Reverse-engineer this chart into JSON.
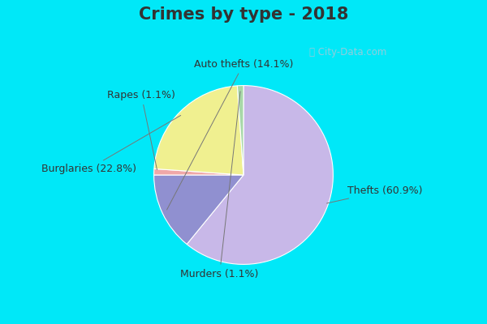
{
  "title": "Crimes by type - 2018",
  "labels": [
    "Thefts",
    "Auto thefts",
    "Rapes",
    "Burglaries",
    "Murders"
  ],
  "values": [
    60.9,
    14.1,
    1.1,
    22.8,
    1.1
  ],
  "colors": [
    "#c8b8e8",
    "#9090d0",
    "#f0a8a8",
    "#f0f090",
    "#a8d8a8"
  ],
  "bg_cyan": "#00e8f8",
  "bg_main": "#d8eee0",
  "title_fontsize": 15,
  "label_fontsize": 9,
  "startangle": 90
}
